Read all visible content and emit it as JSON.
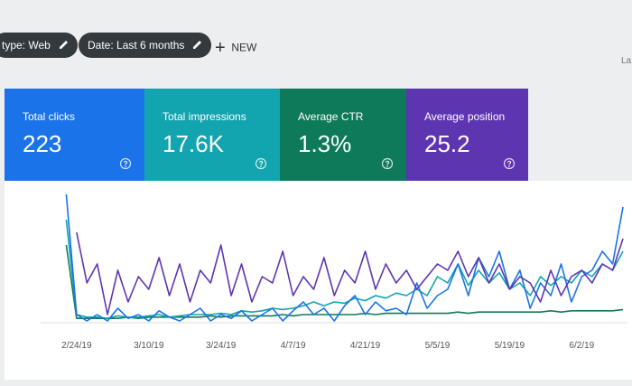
{
  "toolbar": {
    "chips": [
      "type: Web",
      "Date: Last 6 months"
    ],
    "new_button": "NEW",
    "cut_text": "La"
  },
  "chart_data": {
    "type": "line",
    "categories": [
      null,
      null,
      "2/24/19",
      null,
      null,
      null,
      null,
      null,
      null,
      "3/10/19",
      null,
      null,
      null,
      null,
      null,
      null,
      "3/24/19",
      null,
      null,
      null,
      null,
      null,
      null,
      "4/7/19",
      null,
      null,
      null,
      null,
      null,
      null,
      "4/21/19",
      null,
      null,
      null,
      null,
      null,
      null,
      "5/5/19",
      null,
      null,
      null,
      null,
      null,
      null,
      "5/19/19",
      null,
      null,
      null,
      null,
      null,
      null,
      "6/2/19",
      null,
      null,
      null,
      null
    ],
    "ylim": [
      0,
      100
    ],
    "series": [
      {
        "name": "Total clicks",
        "total": "223",
        "color": "#1a73e8",
        "values": [
          null,
          100,
          5,
          0,
          5,
          0,
          10,
          2,
          5,
          0,
          8,
          3,
          0,
          5,
          10,
          0,
          5,
          2,
          8,
          0,
          5,
          10,
          0,
          8,
          15,
          5,
          10,
          0,
          12,
          20,
          5,
          15,
          8,
          10,
          5,
          30,
          10,
          20,
          25,
          45,
          20,
          50,
          35,
          55,
          25,
          40,
          10,
          30,
          20,
          45,
          15,
          35,
          40,
          55,
          45,
          90
        ]
      },
      {
        "name": "Total impressions",
        "total": "17.6K",
        "color": "#12a4af",
        "values": [
          null,
          80,
          5,
          3,
          3,
          2,
          4,
          3,
          3,
          4,
          5,
          3,
          4,
          5,
          5,
          5,
          6,
          5,
          8,
          7,
          8,
          10,
          9,
          10,
          12,
          15,
          12,
          15,
          14,
          18,
          16,
          20,
          18,
          22,
          20,
          25,
          20,
          35,
          30,
          45,
          28,
          40,
          30,
          38,
          25,
          30,
          20,
          35,
          28,
          35,
          30,
          40,
          35,
          45,
          40,
          55
        ]
      },
      {
        "name": "Average CTR",
        "total": "1.3%",
        "color": "#0f7a5a",
        "values": [
          null,
          60,
          2,
          2,
          2,
          2,
          2,
          3,
          2,
          3,
          3,
          3,
          3,
          3,
          3,
          4,
          3,
          4,
          4,
          4,
          4,
          4,
          5,
          4,
          5,
          5,
          5,
          5,
          5,
          5,
          6,
          5,
          6,
          6,
          6,
          6,
          6,
          6,
          6,
          7,
          6,
          7,
          7,
          7,
          7,
          7,
          7,
          7,
          8,
          7,
          8,
          8,
          8,
          8,
          8,
          9
        ]
      },
      {
        "name": "Average position",
        "total": "25.2",
        "color": "#5e35b1",
        "values": [
          null,
          null,
          70,
          30,
          45,
          5,
          40,
          15,
          35,
          25,
          50,
          20,
          45,
          15,
          40,
          30,
          60,
          20,
          45,
          15,
          35,
          30,
          55,
          20,
          35,
          25,
          50,
          20,
          40,
          30,
          55,
          25,
          45,
          30,
          40,
          25,
          35,
          45,
          40,
          55,
          35,
          50,
          30,
          45,
          25,
          35,
          30,
          15,
          40,
          20,
          35,
          40,
          30,
          45,
          40,
          65
        ]
      }
    ]
  }
}
